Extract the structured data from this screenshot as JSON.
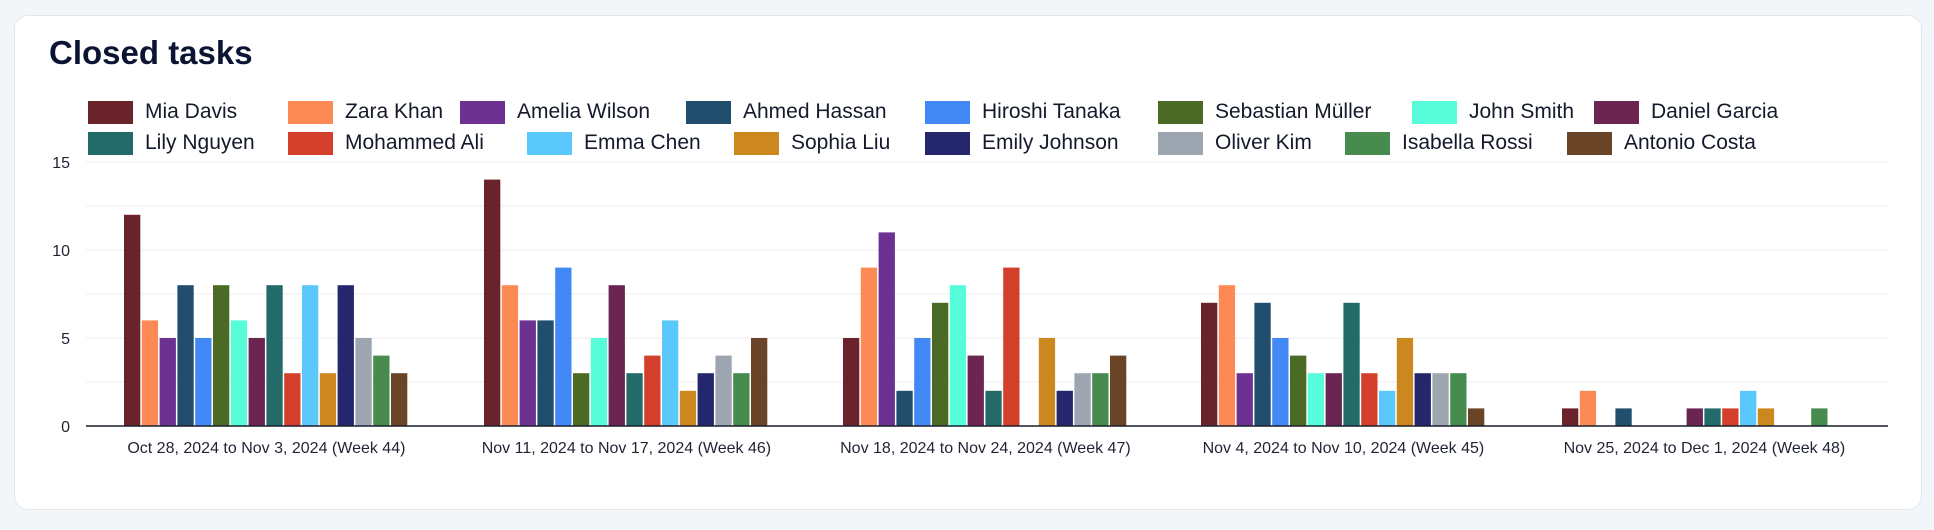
{
  "title": "Closed tasks",
  "chart_data": {
    "type": "bar",
    "title": "Closed tasks",
    "xlabel": "",
    "ylabel": "",
    "ylim": [
      0,
      15
    ],
    "y_ticks": [
      0,
      5,
      10,
      15
    ],
    "grid": true,
    "legend_position": "top",
    "categories": [
      "Oct 28, 2024 to Nov 3, 2024 (Week 44)",
      "Nov 11, 2024 to Nov 17, 2024 (Week 46)",
      "Nov 18, 2024 to Nov 24, 2024 (Week 47)",
      "Nov 4, 2024 to Nov 10, 2024 (Week 45)",
      "Nov 25, 2024 to Dec 1, 2024 (Week 48)"
    ],
    "series": [
      {
        "name": "Mia Davis",
        "color": "#6b232b",
        "values": [
          12,
          14,
          5,
          7,
          1
        ]
      },
      {
        "name": "Zara Khan",
        "color": "#fd8a55",
        "values": [
          6,
          8,
          9,
          8,
          2
        ]
      },
      {
        "name": "Amelia Wilson",
        "color": "#6c3191",
        "values": [
          5,
          6,
          11,
          3,
          0
        ]
      },
      {
        "name": "Ahmed Hassan",
        "color": "#224e6d",
        "values": [
          8,
          6,
          2,
          7,
          1
        ]
      },
      {
        "name": "Hiroshi Tanaka",
        "color": "#4289f5",
        "values": [
          5,
          9,
          5,
          5,
          0
        ]
      },
      {
        "name": "Sebastian Müller",
        "color": "#4b6a25",
        "values": [
          8,
          3,
          7,
          4,
          0
        ]
      },
      {
        "name": "John Smith",
        "color": "#57fcd9",
        "values": [
          6,
          5,
          8,
          3,
          0
        ]
      },
      {
        "name": "Daniel Garcia",
        "color": "#6c2450",
        "values": [
          5,
          8,
          4,
          3,
          1
        ]
      },
      {
        "name": "Lily Nguyen",
        "color": "#236b69",
        "values": [
          8,
          3,
          2,
          7,
          1
        ]
      },
      {
        "name": "Mohammed Ali",
        "color": "#d33f2a",
        "values": [
          3,
          4,
          9,
          3,
          1
        ]
      },
      {
        "name": "Emma Chen",
        "color": "#5ac8fb",
        "values": [
          8,
          6,
          0,
          2,
          2
        ]
      },
      {
        "name": "Sophia Liu",
        "color": "#cc871f",
        "values": [
          3,
          2,
          5,
          5,
          1
        ]
      },
      {
        "name": "Emily Johnson",
        "color": "#25276d",
        "values": [
          8,
          3,
          2,
          3,
          0
        ]
      },
      {
        "name": "Oliver Kim",
        "color": "#9da6b0",
        "values": [
          5,
          4,
          3,
          3,
          0
        ]
      },
      {
        "name": "Isabella Rossi",
        "color": "#478b4f",
        "values": [
          4,
          3,
          3,
          3,
          1
        ]
      },
      {
        "name": "Antonio Costa",
        "color": "#6a4426",
        "values": [
          3,
          5,
          4,
          1,
          0
        ]
      }
    ]
  }
}
